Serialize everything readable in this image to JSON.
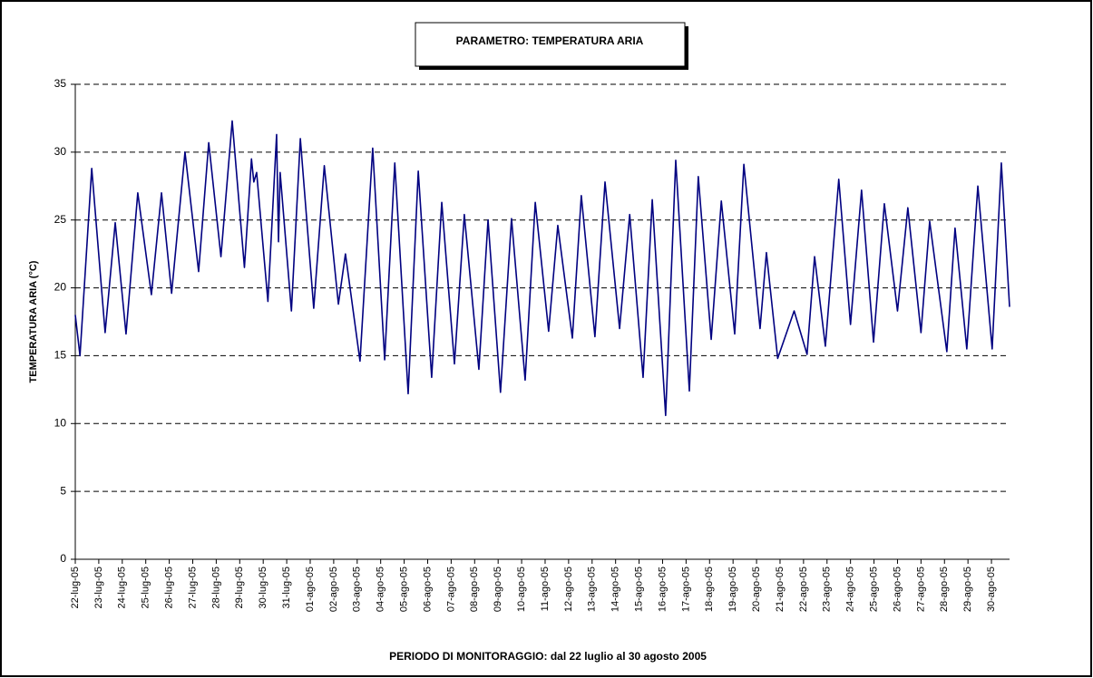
{
  "chart_data": {
    "type": "line",
    "title": "PARAMETRO: TEMPERATURA ARIA",
    "y_label": "TEMPERATURA ARIA (°C)",
    "x_label": "PERIODO DI MONITORAGGIO: dal 22 luglio al 30 agosto 2005",
    "color": "#000080",
    "grid": true,
    "x": [
      0,
      0.2,
      0.7,
      1.27,
      1.7,
      2.16,
      2.66,
      3.24,
      3.67,
      4.1,
      4.67,
      5.25,
      5.68,
      6.2,
      6.68,
      7.2,
      7.5,
      7.6,
      7.72,
      8.2,
      8.57,
      8.65,
      8.72,
      9.2,
      9.58,
      10.15,
      10.6,
      11.2,
      11.5,
      12.12,
      12.66,
      13.17,
      13.6,
      14.17,
      14.6,
      15.17,
      15.6,
      16.14,
      16.56,
      17.18,
      17.57,
      18.1,
      18.57,
      19.15,
      19.58,
      20.15,
      20.54,
      21.16,
      21.54,
      22.12,
      22.55,
      23.17,
      23.6,
      24.17,
      24.56,
      25.13,
      25.56,
      26.14,
      26.52,
      27.07,
      27.5,
      28.07,
      28.46,
      29.15,
      29.42,
      29.9,
      30.6,
      31.15,
      31.47,
      31.93,
      32.5,
      33.0,
      33.47,
      33.98,
      34.44,
      35.0,
      35.44,
      36.0,
      36.37,
      37.1,
      37.45,
      37.95,
      38.42,
      39.03,
      39.42,
      39.77
    ],
    "values": [
      18,
      15,
      28.8,
      16.7,
      24.8,
      16.6,
      27,
      19.5,
      27,
      19.6,
      30,
      21.2,
      30.7,
      22.3,
      32.3,
      21.5,
      29.5,
      27.8,
      28.5,
      19,
      31.3,
      23.4,
      28.5,
      18.3,
      31,
      18.5,
      29,
      18.8,
      22.5,
      14.6,
      30.3,
      14.7,
      29.2,
      12.2,
      28.6,
      13.4,
      26.3,
      14.4,
      25.4,
      14,
      25,
      12.3,
      25.1,
      13.2,
      26.3,
      16.8,
      24.6,
      16.3,
      26.8,
      16.4,
      27.8,
      17,
      25.4,
      13.4,
      26.5,
      10.6,
      29.4,
      12.4,
      28.2,
      16.2,
      26.4,
      16.6,
      29.1,
      17,
      22.6,
      14.8,
      18.3,
      15.1,
      22.3,
      15.7,
      28,
      17.3,
      27.2,
      16,
      26.2,
      18.3,
      25.9,
      16.7,
      24.9,
      15.3,
      24.4,
      15.5,
      27.5,
      15.5,
      29.2,
      18.6
    ],
    "xlim": [
      0,
      39.77
    ],
    "ylim": [
      0,
      35
    ],
    "yticks": [
      0,
      5,
      10,
      15,
      20,
      25,
      30,
      35
    ],
    "xticks": [
      {
        "value": 0,
        "label": "22-lug-05"
      },
      {
        "value": 1,
        "label": "23-lug-05"
      },
      {
        "value": 2,
        "label": "24-lug-05"
      },
      {
        "value": 3,
        "label": "25-lug-05"
      },
      {
        "value": 4,
        "label": "26-lug-05"
      },
      {
        "value": 5,
        "label": "27-lug-05"
      },
      {
        "value": 6,
        "label": "28-lug-05"
      },
      {
        "value": 7,
        "label": "29-lug-05"
      },
      {
        "value": 8,
        "label": "30-lug-05"
      },
      {
        "value": 9,
        "label": "31-lug-05"
      },
      {
        "value": 10,
        "label": "01-ago-05"
      },
      {
        "value": 11,
        "label": "02-ago-05"
      },
      {
        "value": 12,
        "label": "03-ago-05"
      },
      {
        "value": 13,
        "label": "04-ago-05"
      },
      {
        "value": 14,
        "label": "05-ago-05"
      },
      {
        "value": 15,
        "label": "06-ago-05"
      },
      {
        "value": 16,
        "label": "07-ago-05"
      },
      {
        "value": 17,
        "label": "08-ago-05"
      },
      {
        "value": 18,
        "label": "09-ago-05"
      },
      {
        "value": 19,
        "label": "10-ago-05"
      },
      {
        "value": 20,
        "label": "11-ago-05"
      },
      {
        "value": 21,
        "label": "12-ago-05"
      },
      {
        "value": 22,
        "label": "13-ago-05"
      },
      {
        "value": 23,
        "label": "14-ago-05"
      },
      {
        "value": 24,
        "label": "15-ago-05"
      },
      {
        "value": 25,
        "label": "16-ago-05"
      },
      {
        "value": 26,
        "label": "17-ago-05"
      },
      {
        "value": 27,
        "label": "18-ago-05"
      },
      {
        "value": 28,
        "label": "19-ago-05"
      },
      {
        "value": 29,
        "label": "20-ago-05"
      },
      {
        "value": 30,
        "label": "21-ago-05"
      },
      {
        "value": 31,
        "label": "22-ago-05"
      },
      {
        "value": 32,
        "label": "23-ago-05"
      },
      {
        "value": 33,
        "label": "24-ago-05"
      },
      {
        "value": 34,
        "label": "25-ago-05"
      },
      {
        "value": 35,
        "label": "26-ago-05"
      },
      {
        "value": 36,
        "label": "27-ago-05"
      },
      {
        "value": 37,
        "label": "28-ago-05"
      },
      {
        "value": 38,
        "label": "29-ago-05"
      },
      {
        "value": 39,
        "label": "30-ago-05"
      }
    ]
  }
}
